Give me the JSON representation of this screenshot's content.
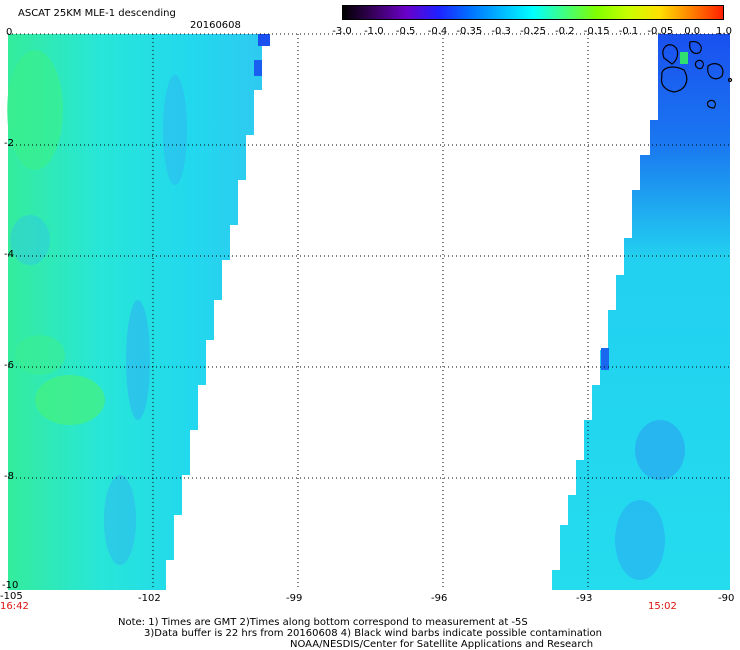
{
  "title": "ASCAT 25KM MLE-1 descending",
  "date": "20160608",
  "colorbar": {
    "labels": [
      "-3.0",
      "-1.0",
      "-0.5",
      "-0.4",
      "-0.35",
      "-0.3",
      "-0.25",
      "-0.2",
      "-0.15",
      "-0.1",
      "-0.05",
      "0.0",
      "1.0"
    ],
    "colors": [
      "#000000",
      "#3a0060",
      "#6a00c8",
      "#2020ff",
      "#0070ff",
      "#00b8ff",
      "#00ffff",
      "#40ff80",
      "#80ff00",
      "#c8ff00",
      "#ffe000",
      "#ff8000",
      "#ff2000"
    ]
  },
  "axes": {
    "x_ticks": [
      "-105",
      "-102",
      "-99",
      "-96",
      "-93",
      "-90"
    ],
    "y_ticks": [
      "0",
      "-2",
      "-4",
      "-6",
      "-8",
      "-10"
    ]
  },
  "times": {
    "left": "16:42",
    "right": "15:02"
  },
  "notes": [
    "Note: 1) Times are GMT 2)Times along bottom correspond to measurement at -5S",
    "3)Data buffer is 22 hrs from 20160608 4) Black wind barbs indicate possible contamination",
    "NOAA/NESDIS/Center for Satellite Applications and Research"
  ],
  "colors": {
    "swath_main": "#22e6e0",
    "swath_green": "#3ef08a",
    "swath_blue": "#2aa8f0",
    "deep_blue": "#1a5cf0",
    "time_red": "#dd1111"
  }
}
